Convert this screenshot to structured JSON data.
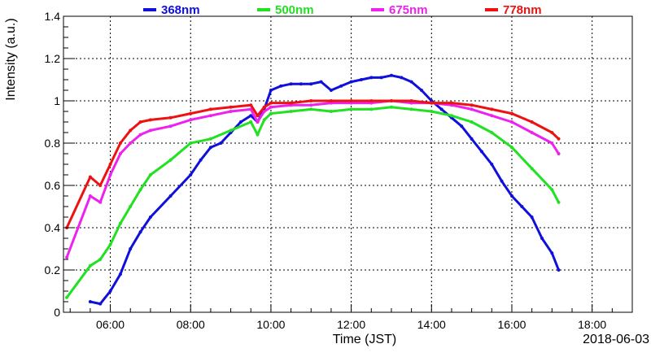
{
  "chart_data": {
    "type": "scatter",
    "title": "",
    "xlabel": "Time (JST)",
    "ylabel": "Intensity (a.u.)",
    "date_label": "2018-06-03",
    "xlim": [
      "04:50",
      "19:00"
    ],
    "ylim": [
      0,
      1.4
    ],
    "grid": true,
    "legend_position": "top",
    "x_ticks": [
      "06:00",
      "08:00",
      "10:00",
      "12:00",
      "14:00",
      "16:00",
      "18:00"
    ],
    "y_ticks": [
      "0",
      "0.2",
      "0.4",
      "0.6",
      "0.8",
      "1",
      "1.2",
      "1.4"
    ],
    "series": [
      {
        "name": "368nm",
        "color": "#1010dd",
        "points": [
          [
            "05:30",
            0.05
          ],
          [
            "05:45",
            0.04
          ],
          [
            "06:00",
            0.1
          ],
          [
            "06:15",
            0.18
          ],
          [
            "06:30",
            0.3
          ],
          [
            "06:45",
            0.38
          ],
          [
            "07:00",
            0.45
          ],
          [
            "07:30",
            0.55
          ],
          [
            "08:00",
            0.65
          ],
          [
            "08:15",
            0.72
          ],
          [
            "08:30",
            0.78
          ],
          [
            "08:45",
            0.8
          ],
          [
            "09:00",
            0.85
          ],
          [
            "09:15",
            0.9
          ],
          [
            "09:30",
            0.93
          ],
          [
            "09:40",
            0.9
          ],
          [
            "09:50",
            0.96
          ],
          [
            "10:00",
            1.05
          ],
          [
            "10:15",
            1.07
          ],
          [
            "10:30",
            1.08
          ],
          [
            "10:45",
            1.08
          ],
          [
            "11:00",
            1.08
          ],
          [
            "11:15",
            1.09
          ],
          [
            "11:30",
            1.05
          ],
          [
            "11:45",
            1.07
          ],
          [
            "12:00",
            1.09
          ],
          [
            "12:15",
            1.1
          ],
          [
            "12:30",
            1.11
          ],
          [
            "12:45",
            1.11
          ],
          [
            "13:00",
            1.12
          ],
          [
            "13:15",
            1.11
          ],
          [
            "13:30",
            1.09
          ],
          [
            "13:45",
            1.05
          ],
          [
            "14:00",
            1.0
          ],
          [
            "14:15",
            0.96
          ],
          [
            "14:30",
            0.92
          ],
          [
            "14:45",
            0.88
          ],
          [
            "15:00",
            0.82
          ],
          [
            "15:15",
            0.76
          ],
          [
            "15:30",
            0.7
          ],
          [
            "15:45",
            0.62
          ],
          [
            "16:00",
            0.55
          ],
          [
            "16:15",
            0.5
          ],
          [
            "16:30",
            0.45
          ],
          [
            "16:45",
            0.35
          ],
          [
            "17:00",
            0.28
          ],
          [
            "17:10",
            0.2
          ]
        ]
      },
      {
        "name": "500nm",
        "color": "#22e022",
        "points": [
          [
            "04:55",
            0.07
          ],
          [
            "05:30",
            0.22
          ],
          [
            "05:45",
            0.25
          ],
          [
            "06:00",
            0.32
          ],
          [
            "06:15",
            0.42
          ],
          [
            "06:30",
            0.5
          ],
          [
            "06:45",
            0.58
          ],
          [
            "07:00",
            0.65
          ],
          [
            "07:30",
            0.72
          ],
          [
            "08:00",
            0.8
          ],
          [
            "08:30",
            0.82
          ],
          [
            "09:00",
            0.86
          ],
          [
            "09:30",
            0.9
          ],
          [
            "09:40",
            0.84
          ],
          [
            "09:50",
            0.91
          ],
          [
            "10:00",
            0.94
          ],
          [
            "10:30",
            0.95
          ],
          [
            "11:00",
            0.96
          ],
          [
            "11:30",
            0.95
          ],
          [
            "12:00",
            0.96
          ],
          [
            "12:30",
            0.96
          ],
          [
            "13:00",
            0.97
          ],
          [
            "13:30",
            0.96
          ],
          [
            "14:00",
            0.95
          ],
          [
            "14:30",
            0.93
          ],
          [
            "15:00",
            0.9
          ],
          [
            "15:30",
            0.85
          ],
          [
            "16:00",
            0.78
          ],
          [
            "16:30",
            0.68
          ],
          [
            "17:00",
            0.58
          ],
          [
            "17:10",
            0.52
          ]
        ]
      },
      {
        "name": "675nm",
        "color": "#ee22ee",
        "points": [
          [
            "04:55",
            0.26
          ],
          [
            "05:30",
            0.55
          ],
          [
            "05:45",
            0.52
          ],
          [
            "06:00",
            0.65
          ],
          [
            "06:15",
            0.75
          ],
          [
            "06:30",
            0.8
          ],
          [
            "06:45",
            0.84
          ],
          [
            "07:00",
            0.86
          ],
          [
            "07:30",
            0.88
          ],
          [
            "08:00",
            0.91
          ],
          [
            "08:30",
            0.93
          ],
          [
            "09:00",
            0.95
          ],
          [
            "09:30",
            0.96
          ],
          [
            "09:40",
            0.9
          ],
          [
            "09:50",
            0.95
          ],
          [
            "10:00",
            0.97
          ],
          [
            "10:30",
            0.98
          ],
          [
            "11:00",
            0.98
          ],
          [
            "11:30",
            0.99
          ],
          [
            "12:00",
            0.99
          ],
          [
            "12:30",
            0.99
          ],
          [
            "13:00",
            1.0
          ],
          [
            "13:30",
            0.99
          ],
          [
            "14:00",
            0.99
          ],
          [
            "14:30",
            0.98
          ],
          [
            "15:00",
            0.96
          ],
          [
            "15:30",
            0.93
          ],
          [
            "16:00",
            0.9
          ],
          [
            "16:30",
            0.85
          ],
          [
            "17:00",
            0.8
          ],
          [
            "17:10",
            0.75
          ]
        ]
      },
      {
        "name": "778nm",
        "color": "#ee1111",
        "points": [
          [
            "04:55",
            0.4
          ],
          [
            "05:30",
            0.64
          ],
          [
            "05:45",
            0.6
          ],
          [
            "06:00",
            0.7
          ],
          [
            "06:15",
            0.8
          ],
          [
            "06:30",
            0.86
          ],
          [
            "06:45",
            0.9
          ],
          [
            "07:00",
            0.91
          ],
          [
            "07:30",
            0.92
          ],
          [
            "08:00",
            0.94
          ],
          [
            "08:30",
            0.96
          ],
          [
            "09:00",
            0.97
          ],
          [
            "09:30",
            0.98
          ],
          [
            "09:40",
            0.93
          ],
          [
            "09:50",
            0.97
          ],
          [
            "10:00",
            0.99
          ],
          [
            "10:30",
            0.99
          ],
          [
            "11:00",
            1.0
          ],
          [
            "11:30",
            1.0
          ],
          [
            "12:00",
            1.0
          ],
          [
            "12:30",
            1.0
          ],
          [
            "13:00",
            1.0
          ],
          [
            "13:30",
            1.0
          ],
          [
            "14:00",
            0.99
          ],
          [
            "14:30",
            0.99
          ],
          [
            "15:00",
            0.98
          ],
          [
            "15:30",
            0.96
          ],
          [
            "16:00",
            0.94
          ],
          [
            "16:30",
            0.9
          ],
          [
            "17:00",
            0.85
          ],
          [
            "17:10",
            0.82
          ]
        ]
      }
    ]
  }
}
